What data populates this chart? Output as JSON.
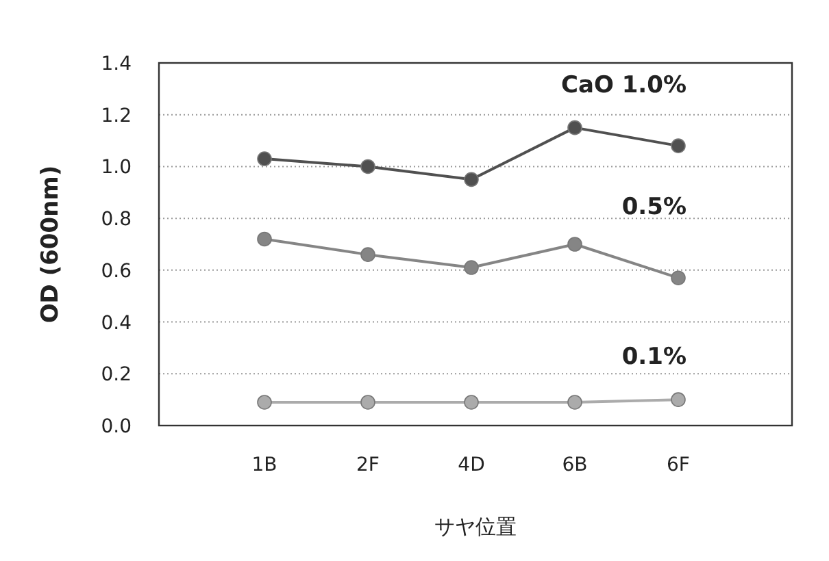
{
  "chart_data": {
    "type": "line",
    "xlabel": "サヤ位置",
    "ylabel": "OD (600nm)",
    "categories": [
      "1B",
      "2F",
      "4D",
      "6B",
      "6F"
    ],
    "series": [
      {
        "name": "CaO 1.0%",
        "color": "#505050",
        "values": [
          1.03,
          1.0,
          0.95,
          1.15,
          1.08
        ]
      },
      {
        "name": "0.5%",
        "color": "#858585",
        "values": [
          0.72,
          0.66,
          0.61,
          0.7,
          0.57
        ]
      },
      {
        "name": "0.1%",
        "color": "#ababab",
        "values": [
          0.09,
          0.09,
          0.09,
          0.09,
          0.1
        ]
      }
    ],
    "ylim": [
      0,
      1.4
    ],
    "yticks": [
      {
        "value": 0,
        "label": "0.0"
      },
      {
        "value": 0.2,
        "label": "0.2"
      },
      {
        "value": 0.4,
        "label": "0.4"
      },
      {
        "value": 0.6,
        "label": "0.6"
      },
      {
        "value": 0.8,
        "label": "0.8"
      },
      {
        "value": 1,
        "label": "1.0"
      },
      {
        "value": 1.2,
        "label": "1.2"
      },
      {
        "value": 1.4,
        "label": "1.4"
      }
    ],
    "grid": "y",
    "marker": "circle",
    "line_style": "solid"
  }
}
